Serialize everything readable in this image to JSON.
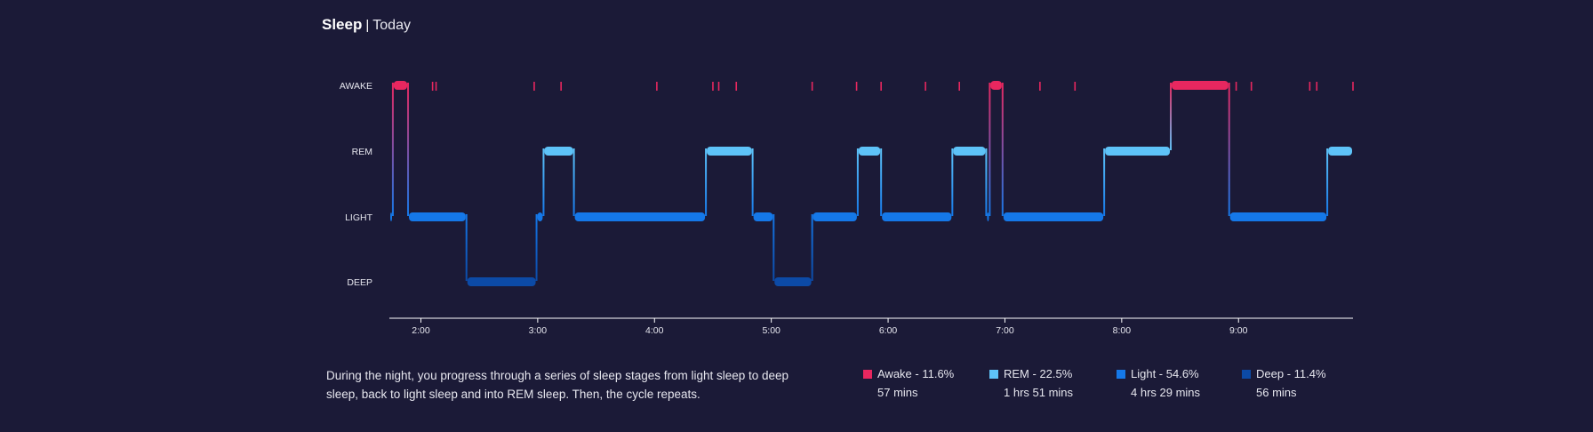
{
  "header": {
    "title": "Sleep",
    "separator": "|",
    "subtitle": "Today"
  },
  "description": "During the night, you progress through a series of sleep stages from light sleep to deep sleep, back to light sleep and into REM sleep. Then, the cycle repeats.",
  "legend": [
    {
      "label": "Awake - 11.6%",
      "duration": "57 mins",
      "color": "#e8275f"
    },
    {
      "label": "REM - 22.5%",
      "duration": "1 hrs 51 mins",
      "color": "#5ec3f8"
    },
    {
      "label": "Light - 54.6%",
      "duration": "4 hrs 29 mins",
      "color": "#1578e8"
    },
    {
      "label": "Deep - 11.4%",
      "duration": "56 mins",
      "color": "#0c4aa6"
    }
  ],
  "chart_data": {
    "type": "area",
    "y_categories": [
      "AWAKE",
      "REM",
      "LIGHT",
      "DEEP"
    ],
    "x_ticks": [
      "2:00",
      "3:00",
      "4:00",
      "5:00",
      "6:00",
      "7:00",
      "8:00",
      "9:00"
    ],
    "x_tick_hours": [
      2,
      3,
      4,
      5,
      6,
      7,
      8,
      9
    ],
    "xlim": [
      1.73,
      9.98
    ],
    "stage_colors": {
      "AWAKE": "#e8275f",
      "REM": "#5ec3f8",
      "LIGHT": "#1578e8",
      "DEEP": "#0c4aa6"
    },
    "segments": [
      {
        "stage": "LIGHT",
        "start": 1.73,
        "end": 1.76
      },
      {
        "stage": "AWAKE",
        "start": 1.76,
        "end": 1.89
      },
      {
        "stage": "LIGHT",
        "start": 1.89,
        "end": 2.39
      },
      {
        "stage": "DEEP",
        "start": 2.39,
        "end": 2.99
      },
      {
        "stage": "LIGHT",
        "start": 2.99,
        "end": 3.05
      },
      {
        "stage": "REM",
        "start": 3.05,
        "end": 3.31
      },
      {
        "stage": "LIGHT",
        "start": 3.31,
        "end": 4.44
      },
      {
        "stage": "REM",
        "start": 4.44,
        "end": 4.84
      },
      {
        "stage": "LIGHT",
        "start": 4.84,
        "end": 5.02
      },
      {
        "stage": "DEEP",
        "start": 5.02,
        "end": 5.35
      },
      {
        "stage": "LIGHT",
        "start": 5.35,
        "end": 5.74
      },
      {
        "stage": "REM",
        "start": 5.74,
        "end": 5.94
      },
      {
        "stage": "LIGHT",
        "start": 5.94,
        "end": 6.55
      },
      {
        "stage": "REM",
        "start": 6.55,
        "end": 6.84
      },
      {
        "stage": "LIGHT",
        "start": 6.84,
        "end": 6.87
      },
      {
        "stage": "AWAKE",
        "start": 6.87,
        "end": 6.98
      },
      {
        "stage": "LIGHT",
        "start": 6.98,
        "end": 7.85
      },
      {
        "stage": "REM",
        "start": 7.85,
        "end": 8.42
      },
      {
        "stage": "AWAKE",
        "start": 8.42,
        "end": 8.92
      },
      {
        "stage": "LIGHT",
        "start": 8.92,
        "end": 9.76
      },
      {
        "stage": "REM",
        "start": 9.76,
        "end": 9.98
      }
    ],
    "brief_awakenings": [
      2.1,
      2.13,
      2.97,
      3.2,
      4.02,
      4.5,
      4.55,
      4.7,
      5.35,
      5.73,
      5.94,
      6.32,
      6.61,
      7.3,
      7.6,
      8.98,
      9.11,
      9.61,
      9.67,
      9.98
    ]
  }
}
